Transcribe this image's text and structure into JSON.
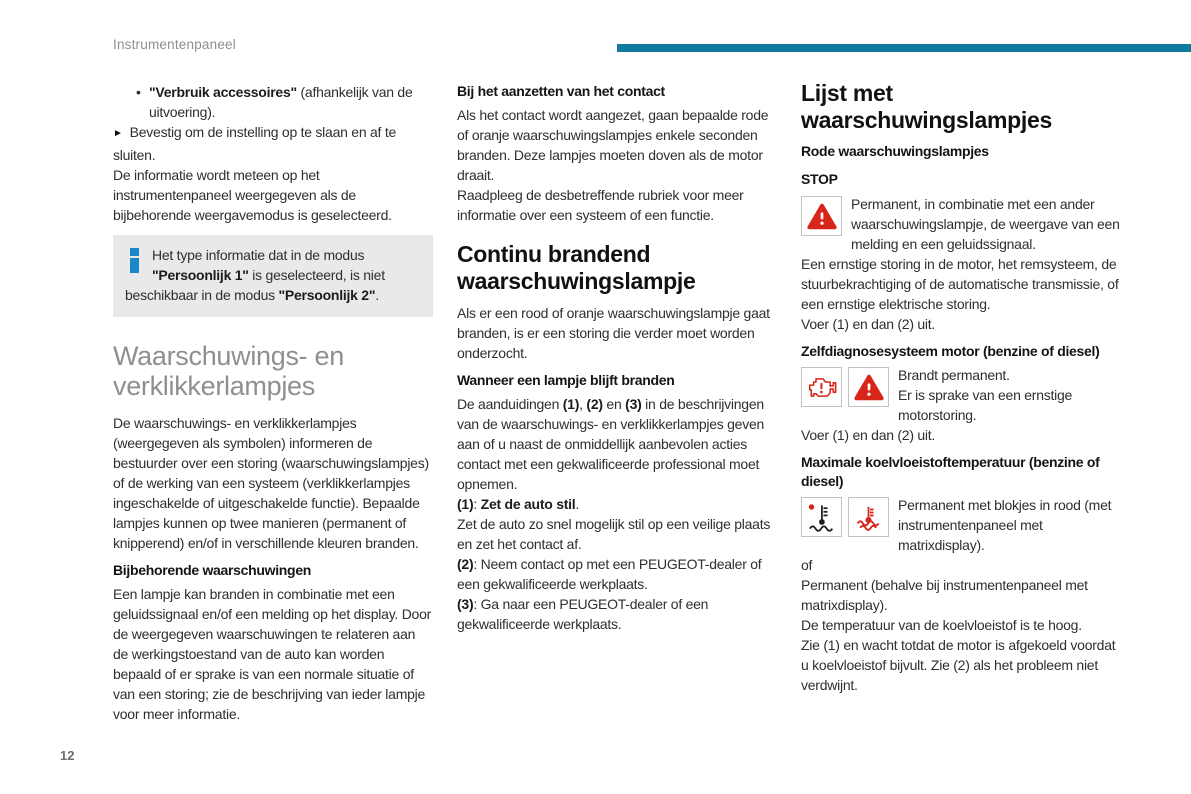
{
  "page": {
    "header": "Instrumentenpaneel",
    "page_number": "12"
  },
  "colors": {
    "accent_teal": "#0f7a9e",
    "warning_red": "#d8251a",
    "info_blue": "#1a87c6"
  },
  "icons": {
    "info": "info-icon",
    "warning_triangle": "warning-triangle-icon",
    "engine": "check-engine-icon",
    "coolant_temp": "coolant-temperature-icon",
    "coolant_temp_red": "coolant-temperature-red-icon"
  },
  "col1": {
    "bullet_marker": "•",
    "bullet_item": [
      {
        "t": "\"Verbruik accessoires\"",
        "b": true
      },
      {
        "t": " (afhankelijk van de uitvoering)."
      }
    ],
    "arrow_marker": "►",
    "confirm_line": "Bevestig om de instelling op te slaan en af te sluiten.",
    "para1": "De informatie wordt meteen op het instrumentenpaneel weergegeven als de bijbehorende weergavemodus is geselecteerd.",
    "infobox": [
      {
        "t": "Het type informatie dat in de modus "
      },
      {
        "t": "\"Persoonlijk 1\"",
        "b": true
      },
      {
        "t": " is geselecteerd, is niet beschikbaar in de modus "
      },
      {
        "t": "\"Persoonlijk 2\"",
        "b": true
      },
      {
        "t": "."
      }
    ],
    "section_title": "Waarschuwings- en verklikkerlampjes",
    "para2": "De waarschuwings- en verklikkerlampjes (weergegeven als symbolen) informeren de bestuurder over een storing (waarschuwingslampjes) of de werking van een systeem (verklikkerlampjes ingeschakelde of uitgeschakelde functie). Bepaalde lampjes kunnen op twee manieren (permanent of knipperend) en/of in verschillende kleuren branden.",
    "sub1": "Bijbehorende waarschuwingen",
    "para3": "Een lampje kan branden in combinatie met een geluidssignaal en/of een melding op het display. Door de weergegeven waarschuwingen te relateren aan de werkingstoestand van de auto kan worden bepaald of er sprake is van een normale situatie of van een storing; zie de beschrijving van ieder lampje voor meer informatie."
  },
  "col2": {
    "sub1": "Bij het aanzetten van het contact",
    "p1": "Als het contact wordt aangezet, gaan bepaalde rode of oranje waarschuwingslampjes enkele seconden branden. Deze lampjes moeten doven als de motor draait.",
    "p2": "Raadpleeg de desbetreffende rubriek voor meer informatie over een systeem of een functie.",
    "section_title": "Continu brandend waarschuwingslampje",
    "p3": "Als er een rood of oranje waarschuwingslampje gaat branden, is er een storing die verder moet worden onderzocht.",
    "sub2": "Wanneer een lampje blijft branden",
    "p4": [
      {
        "t": "De aanduidingen "
      },
      {
        "t": "(1)",
        "b": true
      },
      {
        "t": ", "
      },
      {
        "t": "(2)",
        "b": true
      },
      {
        "t": " en "
      },
      {
        "t": "(3)",
        "b": true
      },
      {
        "t": " in de beschrijvingen van de waarschuwings- en verklikkerlampjes geven aan of u naast de onmiddellijk aanbevolen acties contact met een gekwalificeerde professional moet opnemen."
      }
    ],
    "p5": [
      {
        "t": "(1)",
        "b": true
      },
      {
        "t": ": "
      },
      {
        "t": "Zet de auto stil",
        "b": true
      },
      {
        "t": "."
      }
    ],
    "p6": "Zet de auto zo snel mogelijk stil op een veilige plaats en zet het contact af.",
    "p7": [
      {
        "t": "(2)",
        "b": true
      },
      {
        "t": ": Neem contact op met een PEUGEOT-dealer of een gekwalificeerde werkplaats."
      }
    ],
    "p8": [
      {
        "t": "(3)",
        "b": true
      },
      {
        "t": ": Ga naar een PEUGEOT-dealer of een gekwalificeerde werkplaats."
      }
    ]
  },
  "col3": {
    "section_title": "Lijst met waarschuwingslampjes",
    "sub_red": "Rode waarschuwingslampjes",
    "stop": {
      "title": "STOP",
      "p1": "Permanent, in combinatie met een ander waarschuwingslampje, de weergave van een melding en een geluidssignaal.",
      "p2": "Een ernstige storing in de motor, het remsysteem, de stuurbekrachtiging of de automatische transmissie, of een ernstige elektrische storing.",
      "p3": "Voer (1) en dan (2) uit."
    },
    "selfdiag": {
      "title": "Zelfdiagnosesysteem motor (benzine of diesel)",
      "p1": "Brandt permanent.",
      "p2": "Er is sprake van een ernstige motorstoring.",
      "p3": "Voer (1) en dan (2) uit."
    },
    "coolant": {
      "title": "Maximale koelvloeistoftemperatuur (benzine of diesel)",
      "p1": "Permanent met blokjes in rood (met instrumentenpaneel met matrixdisplay).",
      "p2": "of",
      "p3": "Permanent (behalve bij instrumentenpaneel met matrixdisplay).",
      "p4": "De temperatuur van de koelvloeistof is te hoog.",
      "p5": "Zie (1) en wacht totdat de motor is afgekoeld voordat u koelvloeistof bijvult. Zie (2) als het probleem niet verdwijnt."
    }
  }
}
